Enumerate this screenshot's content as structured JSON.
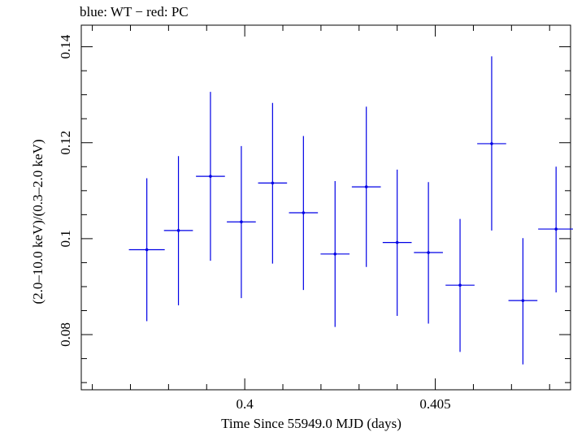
{
  "chart_data": {
    "type": "scatter",
    "title": "blue: WT − red: PC",
    "xlabel": "Time Since 55949.0 MJD (days)",
    "ylabel": "(2.0–10.0 keV)/(0.3–2.0 keV)",
    "xlim": [
      0.39571,
      0.40855
    ],
    "ylim": [
      0.0685,
      0.1445
    ],
    "x_ticks": [
      0.4,
      0.405
    ],
    "x_tick_labels": [
      "0.4",
      "0.405"
    ],
    "x_minor_step": 0.001,
    "y_ticks": [
      0.08,
      0.1,
      0.12,
      0.14
    ],
    "y_tick_labels": [
      "0.08",
      "0.1",
      "0.12",
      "0.14"
    ],
    "y_minor_step": 0.005,
    "grid": false,
    "series_color": "#0000e6",
    "points": [
      {
        "x": 0.39743,
        "xerr": 0.00047,
        "y": 0.0977,
        "ylo": 0.0828,
        "yhi": 0.1126
      },
      {
        "x": 0.39826,
        "xerr": 0.00038,
        "y": 0.1017,
        "ylo": 0.0861,
        "yhi": 0.1172
      },
      {
        "x": 0.3991,
        "xerr": 0.00038,
        "y": 0.113,
        "ylo": 0.0954,
        "yhi": 0.1306
      },
      {
        "x": 0.39991,
        "xerr": 0.00038,
        "y": 0.1035,
        "ylo": 0.0876,
        "yhi": 0.1193
      },
      {
        "x": 0.40073,
        "xerr": 0.00038,
        "y": 0.1116,
        "ylo": 0.0948,
        "yhi": 0.1283
      },
      {
        "x": 0.40154,
        "xerr": 0.00038,
        "y": 0.1054,
        "ylo": 0.0893,
        "yhi": 0.1214
      },
      {
        "x": 0.40237,
        "xerr": 0.00038,
        "y": 0.0968,
        "ylo": 0.0816,
        "yhi": 0.112
      },
      {
        "x": 0.40319,
        "xerr": 0.00038,
        "y": 0.1108,
        "ylo": 0.0941,
        "yhi": 0.1275
      },
      {
        "x": 0.404,
        "xerr": 0.00038,
        "y": 0.0992,
        "ylo": 0.0839,
        "yhi": 0.1144
      },
      {
        "x": 0.40482,
        "xerr": 0.00038,
        "y": 0.0971,
        "ylo": 0.0823,
        "yhi": 0.1118
      },
      {
        "x": 0.40565,
        "xerr": 0.00038,
        "y": 0.0903,
        "ylo": 0.0764,
        "yhi": 0.1041
      },
      {
        "x": 0.40648,
        "xerr": 0.00038,
        "y": 0.1198,
        "ylo": 0.1017,
        "yhi": 0.138
      },
      {
        "x": 0.4073,
        "xerr": 0.00038,
        "y": 0.0871,
        "ylo": 0.0738,
        "yhi": 0.1001
      },
      {
        "x": 0.40817,
        "xerr": 0.00047,
        "y": 0.102,
        "ylo": 0.0888,
        "yhi": 0.115
      }
    ]
  }
}
